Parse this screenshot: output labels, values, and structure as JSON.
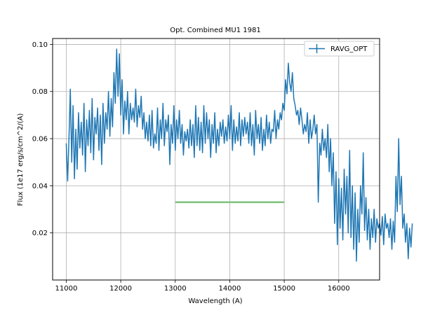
{
  "chart_data": {
    "type": "line",
    "title": "Opt. Combined MU1 1981",
    "xlabel": "Wavelength (A)",
    "ylabel": "Flux (1e17 erg/s/cm^2/(A)",
    "xlim": [
      10750,
      16750
    ],
    "ylim": [
      0.0,
      0.1025
    ],
    "xticks": [
      11000,
      12000,
      13000,
      14000,
      15000,
      16000
    ],
    "yticks": [
      0.02,
      0.04,
      0.06,
      0.08,
      0.1
    ],
    "ytick_labels": [
      "0.02",
      "0.04",
      "0.06",
      "0.08",
      "0.10"
    ],
    "grid": true,
    "legend_position": "top-right",
    "series": [
      {
        "name": "RAVG_OPT",
        "color": "#1f77b4",
        "x_start": 11000,
        "x_step": 25,
        "y": [
          0.058,
          0.042,
          0.06,
          0.081,
          0.05,
          0.074,
          0.043,
          0.064,
          0.047,
          0.071,
          0.056,
          0.067,
          0.053,
          0.075,
          0.046,
          0.068,
          0.057,
          0.072,
          0.054,
          0.077,
          0.051,
          0.069,
          0.062,
          0.073,
          0.055,
          0.07,
          0.049,
          0.075,
          0.058,
          0.071,
          0.064,
          0.08,
          0.061,
          0.077,
          0.065,
          0.088,
          0.075,
          0.098,
          0.078,
          0.096,
          0.07,
          0.085,
          0.062,
          0.076,
          0.068,
          0.08,
          0.062,
          0.075,
          0.068,
          0.073,
          0.067,
          0.081,
          0.065,
          0.074,
          0.069,
          0.078,
          0.064,
          0.071,
          0.06,
          0.067,
          0.059,
          0.07,
          0.057,
          0.072,
          0.056,
          0.062,
          0.058,
          0.073,
          0.055,
          0.068,
          0.06,
          0.075,
          0.057,
          0.068,
          0.063,
          0.07,
          0.049,
          0.066,
          0.058,
          0.074,
          0.055,
          0.068,
          0.06,
          0.072,
          0.058,
          0.066,
          0.053,
          0.063,
          0.059,
          0.064,
          0.056,
          0.068,
          0.057,
          0.066,
          0.052,
          0.074,
          0.057,
          0.069,
          0.055,
          0.067,
          0.054,
          0.074,
          0.058,
          0.071,
          0.06,
          0.068,
          0.052,
          0.066,
          0.058,
          0.071,
          0.054,
          0.064,
          0.057,
          0.067,
          0.061,
          0.068,
          0.058,
          0.065,
          0.059,
          0.07,
          0.06,
          0.074,
          0.055,
          0.068,
          0.058,
          0.065,
          0.059,
          0.071,
          0.057,
          0.068,
          0.061,
          0.069,
          0.062,
          0.067,
          0.058,
          0.071,
          0.057,
          0.066,
          0.053,
          0.072,
          0.06,
          0.066,
          0.058,
          0.069,
          0.055,
          0.064,
          0.057,
          0.07,
          0.06,
          0.067,
          0.058,
          0.064,
          0.063,
          0.072,
          0.06,
          0.068,
          0.064,
          0.071,
          0.068,
          0.075,
          0.072,
          0.085,
          0.079,
          0.092,
          0.084,
          0.08,
          0.088,
          0.077,
          0.074,
          0.07,
          0.072,
          0.066,
          0.073,
          0.068,
          0.062,
          0.066,
          0.063,
          0.071,
          0.058,
          0.068,
          0.06,
          0.064,
          0.07,
          0.062,
          0.066,
          0.033,
          0.058,
          0.053,
          0.064,
          0.055,
          0.06,
          0.052,
          0.066,
          0.046,
          0.06,
          0.04,
          0.054,
          0.024,
          0.046,
          0.015,
          0.043,
          0.022,
          0.039,
          0.017,
          0.047,
          0.028,
          0.044,
          0.02,
          0.055,
          0.018,
          0.04,
          0.013,
          0.037,
          0.008,
          0.03,
          0.016,
          0.04,
          0.028,
          0.054,
          0.021,
          0.035,
          0.017,
          0.03,
          0.013,
          0.026,
          0.018,
          0.03,
          0.016,
          0.026,
          0.022,
          0.024,
          0.019,
          0.027,
          0.015,
          0.028,
          0.022,
          0.024,
          0.018,
          0.026,
          0.013,
          0.025,
          0.016,
          0.044,
          0.029,
          0.06,
          0.032,
          0.044,
          0.022,
          0.028,
          0.016,
          0.024,
          0.009,
          0.022,
          0.014,
          0.024
        ]
      },
      {
        "name": "",
        "color": "#7cc17c",
        "x": [
          13000,
          15000
        ],
        "y": [
          0.033,
          0.033
        ]
      }
    ]
  }
}
